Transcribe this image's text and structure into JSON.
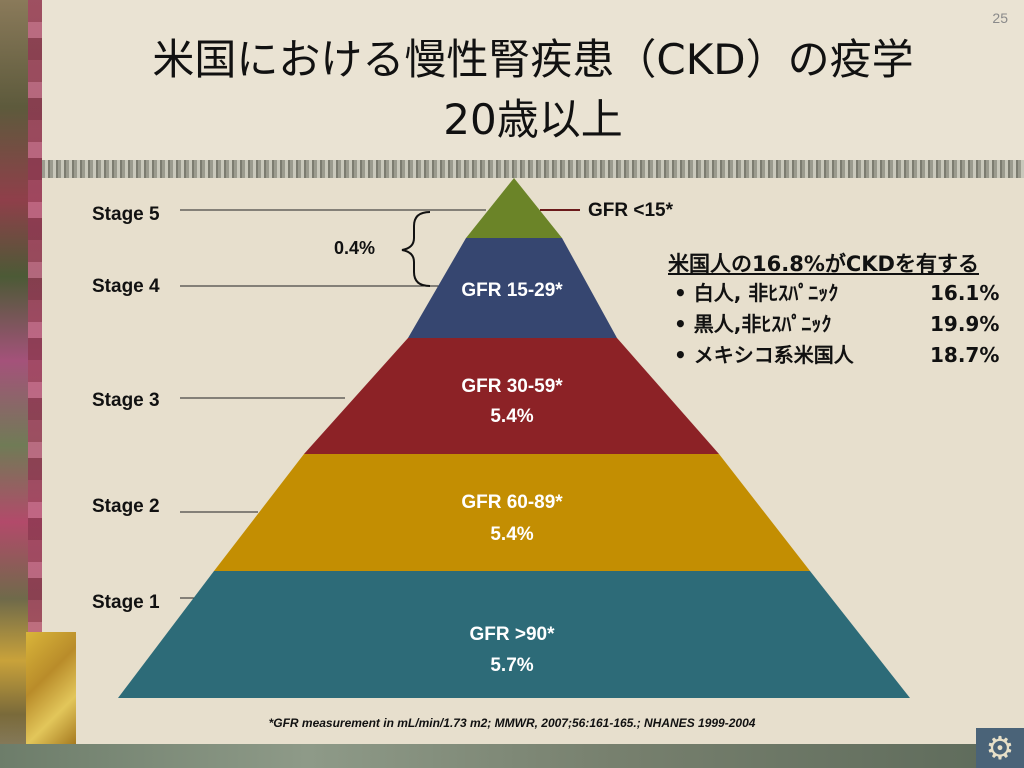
{
  "slide": {
    "number": "25",
    "title_line1": "米国における慢性腎疾患（CKD）の疫学",
    "title_line2": "20歳以上"
  },
  "stages": [
    {
      "label": "Stage 5"
    },
    {
      "label": "Stage 4"
    },
    {
      "label": "Stage 3"
    },
    {
      "label": "Stage 2"
    },
    {
      "label": "Stage 1"
    }
  ],
  "pyramid": {
    "stage45_pct": "0.4%",
    "gfr_stage5": "GFR <15*",
    "segments": [
      {
        "gfr": "GFR 15-29*",
        "pct": "",
        "color": "#364670"
      },
      {
        "gfr": "GFR 30-59*",
        "pct": "5.4%",
        "color": "#8c2226"
      },
      {
        "gfr": "GFR 60-89*",
        "pct": "5.4%",
        "color": "#c38e02"
      },
      {
        "gfr": "GFR >90*",
        "pct": "5.7%",
        "color": "#2d6b78"
      }
    ],
    "apex_color": "#6b8428"
  },
  "info": {
    "heading": "米国人の16.8%がCKDを有する",
    "rows": [
      {
        "label": "• 白人, 非ﾋｽﾊﾟﾆｯｸ",
        "value": "16.1%"
      },
      {
        "label": "• 黒人,非ﾋｽﾊﾟﾆｯｸ",
        "value": "19.9%"
      },
      {
        "label": "• メキシコ系米国人",
        "value": "18.7%"
      }
    ]
  },
  "footnote": "*GFR measurement in mL/min/1.73 m2;   MMWR, 2007;56:161-165.;   NHANES 1999-2004"
}
